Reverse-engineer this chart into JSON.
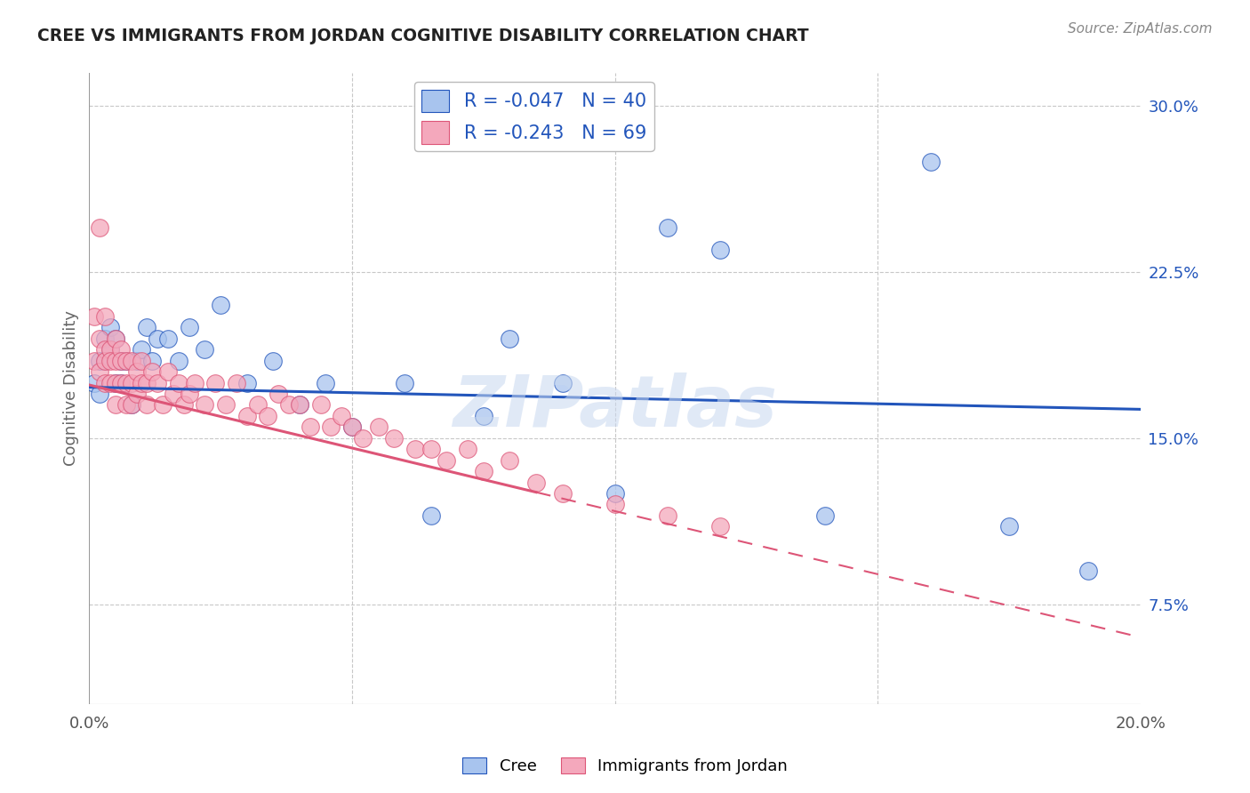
{
  "title": "CREE VS IMMIGRANTS FROM JORDAN COGNITIVE DISABILITY CORRELATION CHART",
  "source": "Source: ZipAtlas.com",
  "ylabel": "Cognitive Disability",
  "xlim": [
    0.0,
    0.2
  ],
  "ylim": [
    0.03,
    0.315
  ],
  "ytick_positions": [
    0.075,
    0.15,
    0.225,
    0.3
  ],
  "ytick_labels": [
    "7.5%",
    "15.0%",
    "22.5%",
    "30.0%"
  ],
  "cree_R": -0.047,
  "cree_N": 40,
  "jordan_R": -0.243,
  "jordan_N": 69,
  "cree_color": "#a8c4ee",
  "jordan_color": "#f4a8bc",
  "cree_line_color": "#2255bb",
  "jordan_line_color": "#dd5577",
  "background_color": "#ffffff",
  "grid_color": "#c8c8c8",
  "watermark_color": "#c8d8f0",
  "cree_x": [
    0.001,
    0.002,
    0.002,
    0.003,
    0.003,
    0.004,
    0.004,
    0.005,
    0.005,
    0.006,
    0.006,
    0.007,
    0.008,
    0.009,
    0.01,
    0.011,
    0.012,
    0.013,
    0.015,
    0.017,
    0.019,
    0.022,
    0.025,
    0.03,
    0.035,
    0.04,
    0.045,
    0.05,
    0.06,
    0.065,
    0.075,
    0.08,
    0.09,
    0.1,
    0.11,
    0.12,
    0.14,
    0.16,
    0.175,
    0.19
  ],
  "cree_y": [
    0.175,
    0.185,
    0.17,
    0.195,
    0.185,
    0.19,
    0.2,
    0.175,
    0.195,
    0.185,
    0.175,
    0.185,
    0.165,
    0.185,
    0.19,
    0.2,
    0.185,
    0.195,
    0.195,
    0.185,
    0.2,
    0.19,
    0.21,
    0.175,
    0.185,
    0.165,
    0.175,
    0.155,
    0.175,
    0.115,
    0.16,
    0.195,
    0.175,
    0.125,
    0.245,
    0.235,
    0.115,
    0.275,
    0.11,
    0.09
  ],
  "jordan_x": [
    0.001,
    0.001,
    0.002,
    0.002,
    0.002,
    0.003,
    0.003,
    0.003,
    0.003,
    0.004,
    0.004,
    0.004,
    0.005,
    0.005,
    0.005,
    0.005,
    0.006,
    0.006,
    0.006,
    0.007,
    0.007,
    0.007,
    0.008,
    0.008,
    0.008,
    0.009,
    0.009,
    0.01,
    0.01,
    0.011,
    0.011,
    0.012,
    0.013,
    0.014,
    0.015,
    0.016,
    0.017,
    0.018,
    0.019,
    0.02,
    0.022,
    0.024,
    0.026,
    0.028,
    0.03,
    0.032,
    0.034,
    0.036,
    0.038,
    0.04,
    0.042,
    0.044,
    0.046,
    0.048,
    0.05,
    0.052,
    0.055,
    0.058,
    0.062,
    0.065,
    0.068,
    0.072,
    0.075,
    0.08,
    0.085,
    0.09,
    0.1,
    0.11,
    0.12
  ],
  "jordan_y": [
    0.205,
    0.185,
    0.245,
    0.195,
    0.18,
    0.19,
    0.185,
    0.175,
    0.205,
    0.19,
    0.185,
    0.175,
    0.195,
    0.185,
    0.175,
    0.165,
    0.19,
    0.185,
    0.175,
    0.185,
    0.175,
    0.165,
    0.185,
    0.175,
    0.165,
    0.18,
    0.17,
    0.185,
    0.175,
    0.175,
    0.165,
    0.18,
    0.175,
    0.165,
    0.18,
    0.17,
    0.175,
    0.165,
    0.17,
    0.175,
    0.165,
    0.175,
    0.165,
    0.175,
    0.16,
    0.165,
    0.16,
    0.17,
    0.165,
    0.165,
    0.155,
    0.165,
    0.155,
    0.16,
    0.155,
    0.15,
    0.155,
    0.15,
    0.145,
    0.145,
    0.14,
    0.145,
    0.135,
    0.14,
    0.13,
    0.125,
    0.12,
    0.115,
    0.11
  ],
  "cree_line_x0": 0.0,
  "cree_line_y0": 0.173,
  "cree_line_x1": 0.2,
  "cree_line_y1": 0.163,
  "jordan_line_x0": 0.0,
  "jordan_line_y0": 0.174,
  "jordan_line_x1": 0.2,
  "jordan_line_y1": 0.06
}
